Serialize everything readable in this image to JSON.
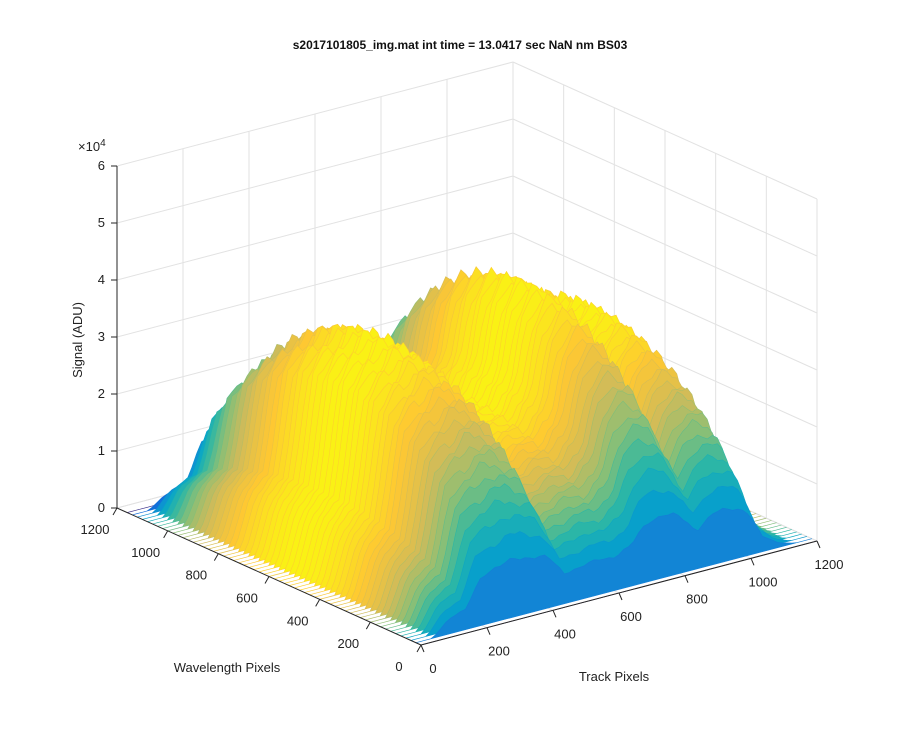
{
  "chart_data": {
    "type": "surface",
    "title": "s2017101805_img.mat int time = 13.0417 sec  NaN nm BS03",
    "xlabel": "Track Pixels",
    "ylabel": "Wavelength Pixels",
    "zlabel": "Signal (ADU)",
    "z_exponent_label": "×10",
    "z_exponent": "4",
    "x_ticks": [
      "0",
      "200",
      "400",
      "600",
      "800",
      "1000",
      "1200"
    ],
    "y_ticks": [
      "0",
      "200",
      "400",
      "600",
      "800",
      "1000",
      "1200"
    ],
    "z_ticks": [
      "0",
      "1",
      "2",
      "3",
      "4",
      "5",
      "6"
    ],
    "xlim": [
      0,
      1200
    ],
    "ylim": [
      0,
      1200
    ],
    "zlim": [
      0,
      60000
    ],
    "grid": true,
    "colormap": "parula",
    "colors": [
      "#352a87",
      "#0f5cdd",
      "#1481d6",
      "#06a4ca",
      "#2eb7a4",
      "#87bf77",
      "#d1bb59",
      "#fec832",
      "#f9fb0e"
    ],
    "track_x": [
      0,
      50,
      100,
      150,
      200,
      250,
      300,
      350,
      400,
      450,
      500,
      550,
      600,
      650,
      700,
      750,
      800,
      850,
      900,
      950,
      1000,
      1050,
      1100,
      1150,
      1200
    ],
    "peak_signal": [
      0,
      0,
      10000,
      13000,
      33000,
      35000,
      38000,
      36000,
      33000,
      20000,
      21000,
      23000,
      22000,
      26000,
      39000,
      41000,
      37000,
      25000,
      33000,
      34000,
      30000,
      10000,
      3000,
      0,
      0
    ]
  }
}
